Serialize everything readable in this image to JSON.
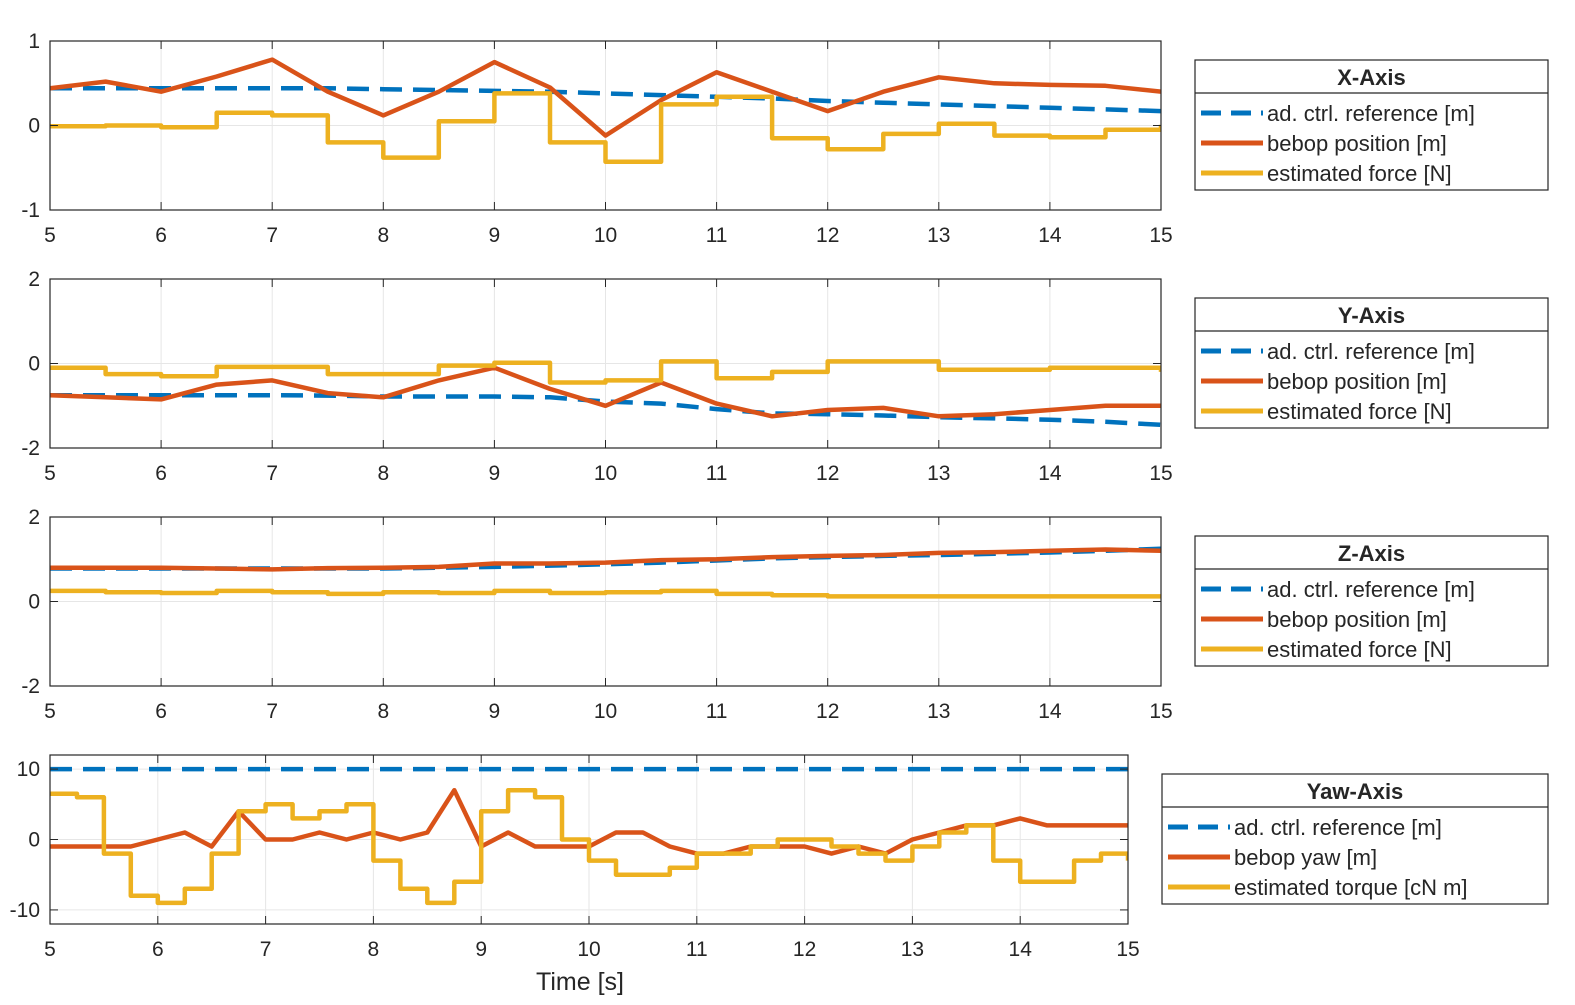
{
  "chart_data": [
    {
      "type": "line",
      "title": "X-Axis",
      "xlabel": "",
      "xlim": [
        5,
        15
      ],
      "ylim": [
        -1,
        1
      ],
      "xticks": [
        5,
        6,
        7,
        8,
        9,
        10,
        11,
        12,
        13,
        14,
        15
      ],
      "yticks": [
        -1,
        0,
        1
      ],
      "x": [
        5,
        5.5,
        6,
        6.5,
        7,
        7.5,
        8,
        8.5,
        9,
        9.5,
        10,
        10.5,
        11,
        11.5,
        12,
        12.5,
        13,
        13.5,
        14,
        14.5,
        15
      ],
      "series": [
        {
          "name": "ad. ctrl. reference [m]",
          "color": "#0072BD",
          "dash": true,
          "step": false,
          "values": [
            0.44,
            0.44,
            0.44,
            0.44,
            0.44,
            0.44,
            0.43,
            0.42,
            0.41,
            0.4,
            0.38,
            0.36,
            0.34,
            0.32,
            0.29,
            0.27,
            0.25,
            0.23,
            0.21,
            0.19,
            0.17
          ]
        },
        {
          "name": "bebop position [m]",
          "color": "#D95319",
          "dash": false,
          "step": false,
          "values": [
            0.44,
            0.52,
            0.4,
            0.58,
            0.78,
            0.4,
            0.12,
            0.4,
            0.75,
            0.45,
            -0.12,
            0.3,
            0.63,
            0.4,
            0.17,
            0.4,
            0.57,
            0.5,
            0.48,
            0.47,
            0.4
          ]
        },
        {
          "name": "estimated force [N]",
          "color": "#EDB120",
          "dash": false,
          "step": true,
          "values": [
            -0.01,
            0.0,
            -0.02,
            0.15,
            0.12,
            -0.2,
            -0.38,
            0.05,
            0.38,
            -0.2,
            -0.43,
            0.25,
            0.34,
            -0.15,
            -0.28,
            -0.1,
            0.02,
            -0.12,
            -0.14,
            -0.05,
            0.01
          ]
        }
      ]
    },
    {
      "type": "line",
      "title": "Y-Axis",
      "xlabel": "",
      "xlim": [
        5,
        15
      ],
      "ylim": [
        -2,
        2
      ],
      "xticks": [
        5,
        6,
        7,
        8,
        9,
        10,
        11,
        12,
        13,
        14,
        15
      ],
      "yticks": [
        -2,
        0,
        2
      ],
      "x": [
        5,
        5.5,
        6,
        6.5,
        7,
        7.5,
        8,
        8.5,
        9,
        9.5,
        10,
        10.5,
        11,
        11.5,
        12,
        12.5,
        13,
        13.5,
        14,
        14.5,
        15
      ],
      "series": [
        {
          "name": "ad. ctrl. reference [m]",
          "color": "#0072BD",
          "dash": true,
          "step": false,
          "values": [
            -0.75,
            -0.75,
            -0.75,
            -0.75,
            -0.75,
            -0.76,
            -0.78,
            -0.78,
            -0.78,
            -0.8,
            -0.9,
            -0.95,
            -1.08,
            -1.18,
            -1.2,
            -1.23,
            -1.27,
            -1.3,
            -1.33,
            -1.38,
            -1.45
          ]
        },
        {
          "name": "bebop position [m]",
          "color": "#D95319",
          "dash": false,
          "step": false,
          "values": [
            -0.75,
            -0.8,
            -0.85,
            -0.5,
            -0.4,
            -0.7,
            -0.8,
            -0.4,
            -0.1,
            -0.6,
            -1.0,
            -0.45,
            -0.95,
            -1.25,
            -1.1,
            -1.05,
            -1.25,
            -1.2,
            -1.1,
            -1.0,
            -1.0
          ]
        },
        {
          "name": "estimated force [N]",
          "color": "#EDB120",
          "dash": false,
          "step": true,
          "values": [
            -0.1,
            -0.25,
            -0.3,
            -0.08,
            -0.08,
            -0.25,
            -0.25,
            -0.05,
            0.02,
            -0.45,
            -0.4,
            0.05,
            -0.35,
            -0.2,
            0.05,
            0.05,
            -0.15,
            -0.15,
            -0.1,
            -0.1,
            -0.2
          ]
        }
      ]
    },
    {
      "type": "line",
      "title": "Z-Axis",
      "xlabel": "",
      "xlim": [
        5,
        15
      ],
      "ylim": [
        -2,
        2
      ],
      "xticks": [
        5,
        6,
        7,
        8,
        9,
        10,
        11,
        12,
        13,
        14,
        15
      ],
      "yticks": [
        -2,
        0,
        2
      ],
      "x": [
        5,
        5.5,
        6,
        6.5,
        7,
        7.5,
        8,
        8.5,
        9,
        9.5,
        10,
        10.5,
        11,
        11.5,
        12,
        12.5,
        13,
        13.5,
        14,
        14.5,
        15
      ],
      "series": [
        {
          "name": "ad. ctrl. reference [m]",
          "color": "#0072BD",
          "dash": true,
          "step": false,
          "values": [
            0.78,
            0.78,
            0.78,
            0.78,
            0.78,
            0.78,
            0.78,
            0.8,
            0.82,
            0.85,
            0.88,
            0.92,
            0.97,
            1.02,
            1.05,
            1.08,
            1.1,
            1.13,
            1.16,
            1.2,
            1.25
          ]
        },
        {
          "name": "bebop position [m]",
          "color": "#D95319",
          "dash": false,
          "step": false,
          "values": [
            0.8,
            0.8,
            0.8,
            0.78,
            0.76,
            0.79,
            0.8,
            0.82,
            0.9,
            0.9,
            0.92,
            0.98,
            1.0,
            1.05,
            1.08,
            1.1,
            1.15,
            1.17,
            1.2,
            1.23,
            1.2
          ]
        },
        {
          "name": "estimated force [N]",
          "color": "#EDB120",
          "dash": false,
          "step": true,
          "values": [
            0.25,
            0.22,
            0.2,
            0.25,
            0.22,
            0.18,
            0.22,
            0.2,
            0.25,
            0.2,
            0.22,
            0.25,
            0.18,
            0.15,
            0.12,
            0.12,
            0.12,
            0.12,
            0.12,
            0.12,
            0.1
          ]
        }
      ]
    },
    {
      "type": "line",
      "title": "Yaw-Axis",
      "xlabel": "Time [s]",
      "xlim": [
        5,
        15
      ],
      "ylim": [
        -12,
        12
      ],
      "xticks": [
        5,
        6,
        7,
        8,
        9,
        10,
        11,
        12,
        13,
        14,
        15
      ],
      "yticks": [
        -10,
        0,
        10
      ],
      "x": [
        5,
        5.25,
        5.5,
        5.75,
        6,
        6.25,
        6.5,
        6.75,
        7,
        7.25,
        7.5,
        7.75,
        8,
        8.25,
        8.5,
        8.75,
        9,
        9.25,
        9.5,
        9.75,
        10,
        10.25,
        10.5,
        10.75,
        11,
        11.25,
        11.5,
        11.75,
        12,
        12.25,
        12.5,
        12.75,
        13,
        13.25,
        13.5,
        13.75,
        14,
        14.25,
        14.5,
        14.75,
        15
      ],
      "series": [
        {
          "name": "ad. ctrl. reference [m]",
          "color": "#0072BD",
          "dash": true,
          "step": false,
          "values": [
            10,
            10,
            10,
            10,
            10,
            10,
            10,
            10,
            10,
            10,
            10,
            10,
            10,
            10,
            10,
            10,
            10,
            10,
            10,
            10,
            10,
            10,
            10,
            10,
            10,
            10,
            10,
            10,
            10,
            10,
            10,
            10,
            10,
            10,
            10,
            10,
            10,
            10,
            10,
            10,
            10
          ]
        },
        {
          "name": "bebop yaw [m]",
          "color": "#D95319",
          "dash": false,
          "step": false,
          "values": [
            -1,
            -1,
            -1,
            -1,
            0,
            1,
            -1,
            4,
            0,
            0,
            1,
            0,
            1,
            0,
            1,
            7,
            -1,
            1,
            -1,
            -1,
            -1,
            1,
            1,
            -1,
            -2,
            -2,
            -1,
            -1,
            -1,
            -2,
            -1,
            -2,
            0,
            1,
            2,
            2,
            3,
            2,
            2,
            2,
            2
          ]
        },
        {
          "name": "estimated torque [cN m]",
          "color": "#EDB120",
          "dash": false,
          "step": true,
          "values": [
            6.5,
            6.0,
            -2.0,
            -8.0,
            -9.0,
            -7.0,
            -2.0,
            4.0,
            5.0,
            3.0,
            4.0,
            5.0,
            -3.0,
            -7.0,
            -9.0,
            -6.0,
            4.0,
            7.0,
            6.0,
            0.0,
            -3.0,
            -5.0,
            -5.0,
            -4.0,
            -2.0,
            -2.0,
            -1.0,
            0.0,
            0.0,
            -1.0,
            -2.0,
            -3.0,
            -1.0,
            1.0,
            2.0,
            -3.0,
            -6.0,
            -6.0,
            -3.0,
            -2.0,
            -3.0
          ]
        }
      ]
    }
  ]
}
